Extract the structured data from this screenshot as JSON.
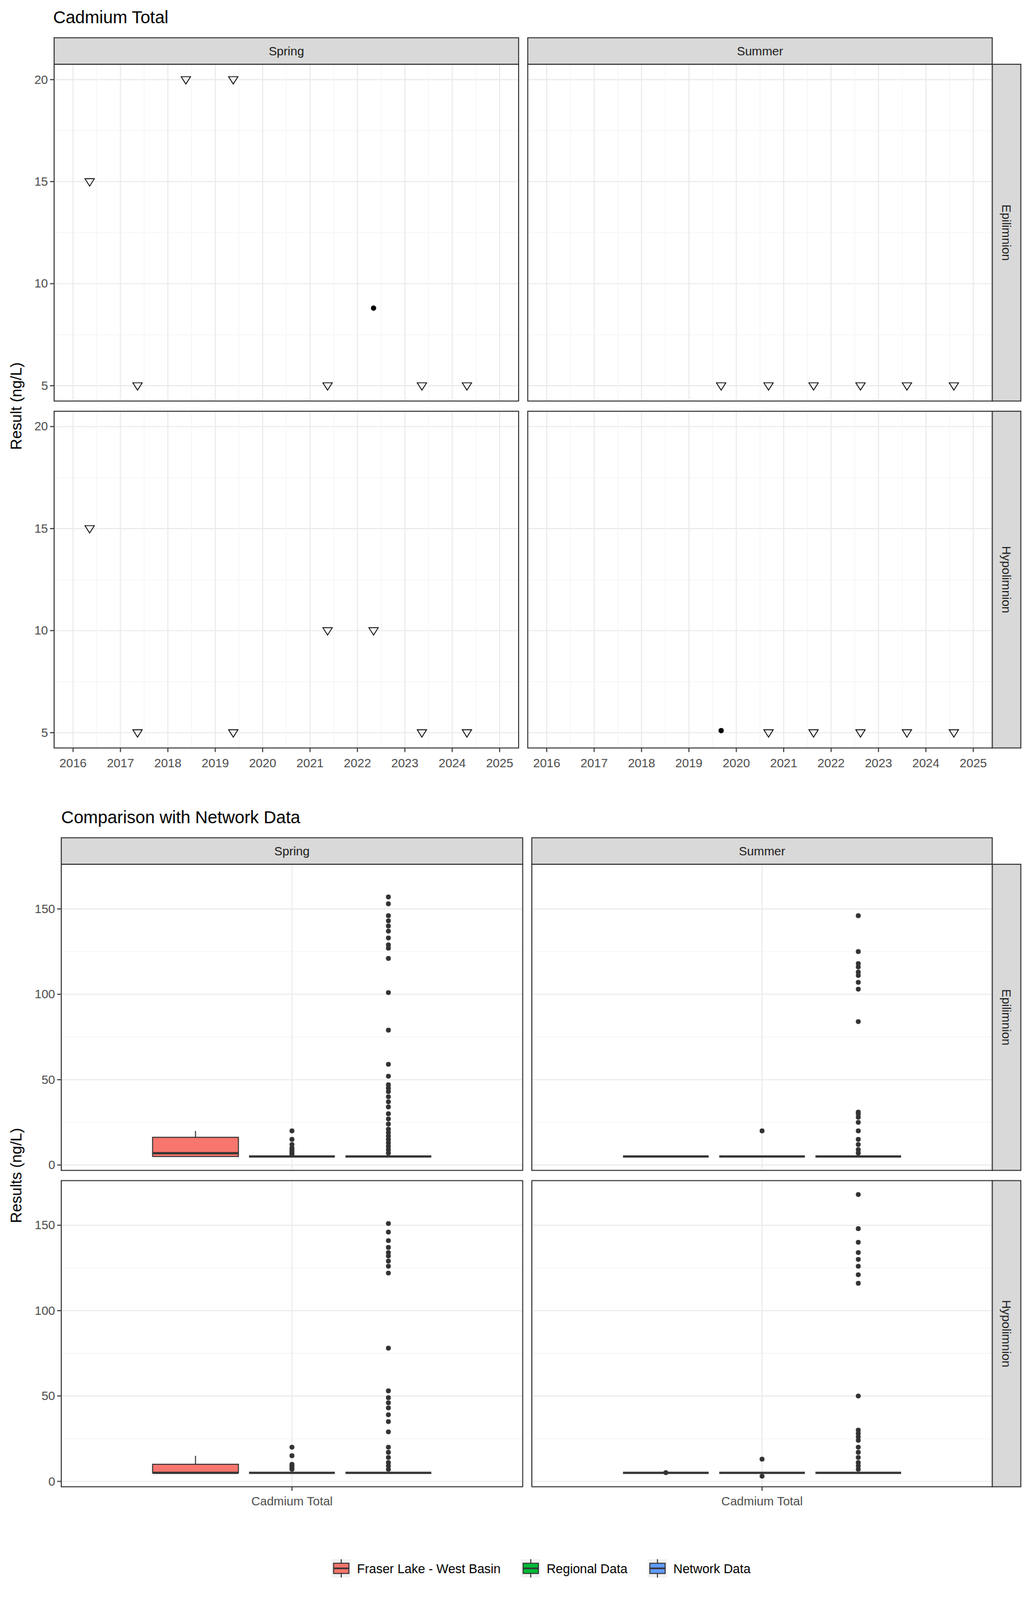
{
  "chart_data": [
    {
      "type": "scatter",
      "title": "Cadmium Total",
      "y_label": "Result (ng/L)",
      "columns": [
        "Spring",
        "Summer"
      ],
      "rows": [
        "Epilimnion",
        "Hypolimnion"
      ],
      "xlim": [
        2015.6,
        2025.4
      ],
      "xticks": [
        2016,
        2017,
        2018,
        2019,
        2020,
        2021,
        2022,
        2023,
        2024,
        2025
      ],
      "ylim": [
        4.25,
        20.75
      ],
      "yticks": [
        5,
        10,
        15,
        20
      ],
      "grid": true,
      "panels": [
        {
          "col": 0,
          "row": 0,
          "series": [
            {
              "marker": "triangle-down",
              "x": [
                2016.35,
                2017.36,
                2018.38,
                2019.38,
                2021.37,
                2023.36,
                2024.31
              ],
              "values": [
                15,
                5,
                20,
                20,
                5,
                5,
                5
              ]
            },
            {
              "marker": "circle",
              "x": [
                2022.34
              ],
              "values": [
                8.8
              ]
            }
          ]
        },
        {
          "col": 1,
          "row": 0,
          "series": [
            {
              "marker": "triangle-down",
              "x": [
                2019.68,
                2020.68,
                2021.63,
                2022.62,
                2023.6,
                2024.59
              ],
              "values": [
                5,
                5,
                5,
                5,
                5,
                5
              ]
            }
          ]
        },
        {
          "col": 0,
          "row": 1,
          "series": [
            {
              "marker": "triangle-down",
              "x": [
                2016.35,
                2017.36,
                2019.38,
                2021.37,
                2022.34,
                2023.36,
                2024.31
              ],
              "values": [
                15,
                5,
                5,
                10,
                10,
                5,
                5
              ]
            }
          ]
        },
        {
          "col": 1,
          "row": 1,
          "series": [
            {
              "marker": "triangle-down",
              "x": [
                2020.68,
                2021.63,
                2022.62,
                2023.6,
                2024.59
              ],
              "values": [
                5,
                5,
                5,
                5,
                5
              ]
            },
            {
              "marker": "circle",
              "x": [
                2019.68
              ],
              "values": [
                5.1
              ]
            }
          ]
        }
      ]
    },
    {
      "type": "box",
      "title": "Comparison with Network Data",
      "y_label": "Results (ng/L)",
      "columns": [
        "Spring",
        "Summer"
      ],
      "rows": [
        "Epilimnion",
        "Hypolimnion"
      ],
      "categories": [
        "Cadmium Total"
      ],
      "ylim": [
        -3.15,
        176.15
      ],
      "yticks": [
        0,
        50,
        100,
        150
      ],
      "grid": true,
      "legend": "bottom",
      "series": [
        {
          "name": "Fraser Lake - West Basin",
          "color": "#F8766D",
          "panels": [
            {
              "col": 0,
              "row": 0,
              "min": 5,
              "q1": 5,
              "median": 6.9,
              "q3": 16.25,
              "max": 20,
              "outliers": []
            },
            {
              "col": 1,
              "row": 0,
              "min": 5,
              "q1": 5,
              "median": 5,
              "q3": 5,
              "max": 5,
              "outliers": []
            },
            {
              "col": 0,
              "row": 1,
              "min": 5,
              "q1": 5,
              "median": 5,
              "q3": 10,
              "max": 15,
              "outliers": []
            },
            {
              "col": 1,
              "row": 1,
              "min": 5,
              "q1": 5,
              "median": 5,
              "q3": 5,
              "max": 5,
              "outliers": [
                5.1
              ]
            }
          ]
        },
        {
          "name": "Regional Data",
          "color": "#00BA38",
          "panels": [
            {
              "col": 0,
              "row": 0,
              "min": 5,
              "q1": 5,
              "median": 5,
              "q3": 5,
              "max": 5,
              "outliers": [
                20,
                15,
                12,
                10,
                9,
                8,
                7,
                6
              ]
            },
            {
              "col": 1,
              "row": 0,
              "min": 5,
              "q1": 5,
              "median": 5,
              "q3": 5,
              "max": 5,
              "outliers": [
                20
              ]
            },
            {
              "col": 0,
              "row": 1,
              "min": 5,
              "q1": 5,
              "median": 5,
              "q3": 5,
              "max": 5,
              "outliers": [
                20,
                15,
                10,
                9,
                8,
                7
              ]
            },
            {
              "col": 1,
              "row": 1,
              "min": 5,
              "q1": 5,
              "median": 5,
              "q3": 5,
              "max": 5,
              "outliers": [
                13,
                3
              ]
            }
          ]
        },
        {
          "name": "Network Data",
          "color": "#619CFF",
          "panels": [
            {
              "col": 0,
              "row": 0,
              "min": 5,
              "q1": 5,
              "median": 5,
              "q3": 5,
              "max": 5,
              "outliers": [
                157,
                153,
                146,
                143,
                140,
                137,
                133,
                129,
                127,
                121,
                101,
                79,
                59,
                52,
                47,
                45,
                43,
                40,
                37,
                34,
                30,
                27,
                24,
                21,
                19,
                17,
                15,
                13,
                11,
                9,
                7
              ]
            },
            {
              "col": 1,
              "row": 0,
              "min": 5,
              "q1": 5,
              "median": 5,
              "q3": 5,
              "max": 5,
              "outliers": [
                146,
                125,
                118,
                116,
                113,
                111,
                107,
                103,
                84,
                31,
                30,
                28,
                25,
                20,
                15,
                12,
                9,
                7
              ]
            },
            {
              "col": 0,
              "row": 1,
              "min": 5,
              "q1": 5,
              "median": 5,
              "q3": 5,
              "max": 5,
              "outliers": [
                151,
                146,
                141,
                137,
                134,
                132,
                129,
                126,
                122,
                78,
                53,
                49,
                46,
                43,
                39,
                35,
                29,
                20,
                17,
                14,
                11,
                9,
                7
              ]
            },
            {
              "col": 1,
              "row": 1,
              "min": 5,
              "q1": 5,
              "median": 5,
              "q3": 5,
              "max": 5,
              "outliers": [
                168,
                148,
                140,
                134,
                130,
                126,
                121,
                116,
                50,
                30,
                28,
                26,
                24,
                20,
                17,
                14,
                11,
                9,
                7
              ]
            }
          ]
        }
      ]
    }
  ]
}
